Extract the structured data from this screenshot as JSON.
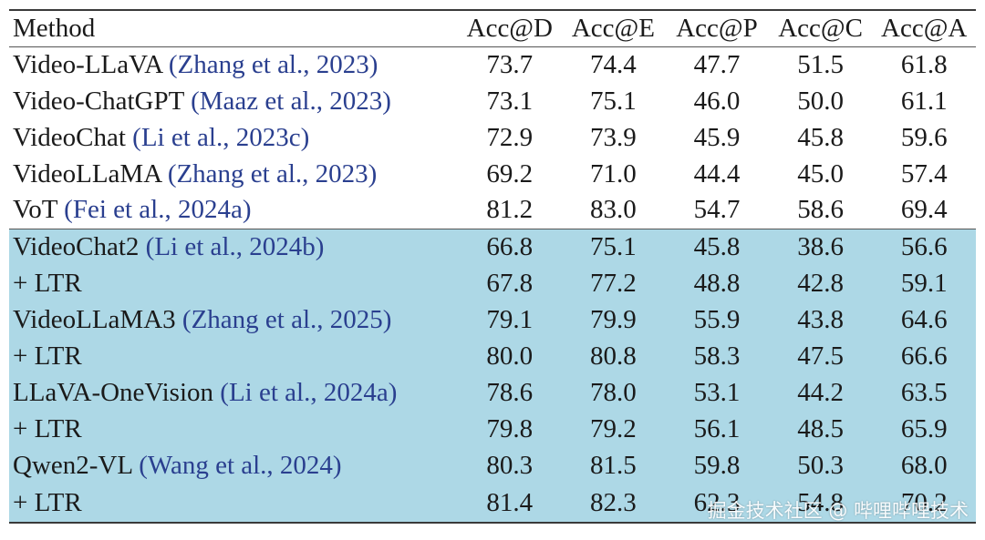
{
  "table": {
    "headers": [
      "Method",
      "Acc@D",
      "Acc@E",
      "Acc@P",
      "Acc@C",
      "Acc@A"
    ],
    "rows": [
      {
        "name": "Video-LLaVA",
        "cite": "(Zhang et al., 2023)",
        "values": [
          "73.7",
          "74.4",
          "47.7",
          "51.5",
          "61.8"
        ],
        "shaded": false
      },
      {
        "name": "Video-ChatGPT",
        "cite": "(Maaz et al., 2023)",
        "values": [
          "73.1",
          "75.1",
          "46.0",
          "50.0",
          "61.1"
        ],
        "shaded": false
      },
      {
        "name": "VideoChat",
        "cite": "(Li et al., 2023c)",
        "values": [
          "72.9",
          "73.9",
          "45.9",
          "45.8",
          "59.6"
        ],
        "shaded": false
      },
      {
        "name": "VideoLLaMA",
        "cite": "(Zhang et al., 2023)",
        "values": [
          "69.2",
          "71.0",
          "44.4",
          "45.0",
          "57.4"
        ],
        "shaded": false
      },
      {
        "name": "VoT",
        "cite": "(Fei et al., 2024a)",
        "values": [
          "81.2",
          "83.0",
          "54.7",
          "58.6",
          "69.4"
        ],
        "shaded": false
      },
      {
        "name": "VideoChat2",
        "cite": "(Li et al., 2024b)",
        "values": [
          "66.8",
          "75.1",
          "45.8",
          "38.6",
          "56.6"
        ],
        "shaded": true
      },
      {
        "name": "+ LTR",
        "cite": "",
        "values": [
          "67.8",
          "77.2",
          "48.8",
          "42.8",
          "59.1"
        ],
        "shaded": true
      },
      {
        "name": "VideoLLaMA3",
        "cite": "(Zhang et al., 2025)",
        "values": [
          "79.1",
          "79.9",
          "55.9",
          "43.8",
          "64.6"
        ],
        "shaded": true
      },
      {
        "name": "+ LTR",
        "cite": "",
        "values": [
          "80.0",
          "80.8",
          "58.3",
          "47.5",
          "66.6"
        ],
        "shaded": true
      },
      {
        "name": "LLaVA-OneVision",
        "cite": "(Li et al., 2024a)",
        "values": [
          "78.6",
          "78.0",
          "53.1",
          "44.2",
          "63.5"
        ],
        "shaded": true
      },
      {
        "name": "+ LTR",
        "cite": "",
        "values": [
          "79.8",
          "79.2",
          "56.1",
          "48.5",
          "65.9"
        ],
        "shaded": true
      },
      {
        "name": "Qwen2-VL",
        "cite": "(Wang et al., 2024)",
        "values": [
          "80.3",
          "81.5",
          "59.8",
          "50.3",
          "68.0"
        ],
        "shaded": true
      },
      {
        "name": "+ LTR",
        "cite": "",
        "values": [
          "81.4",
          "82.3",
          "62.3",
          "54.8",
          "70.2"
        ],
        "shaded": true
      }
    ]
  },
  "watermark": "掘金技术社区 @ 哔哩哔哩技术",
  "colors": {
    "shade": "#add8e6",
    "citation": "#2a3f8f"
  }
}
